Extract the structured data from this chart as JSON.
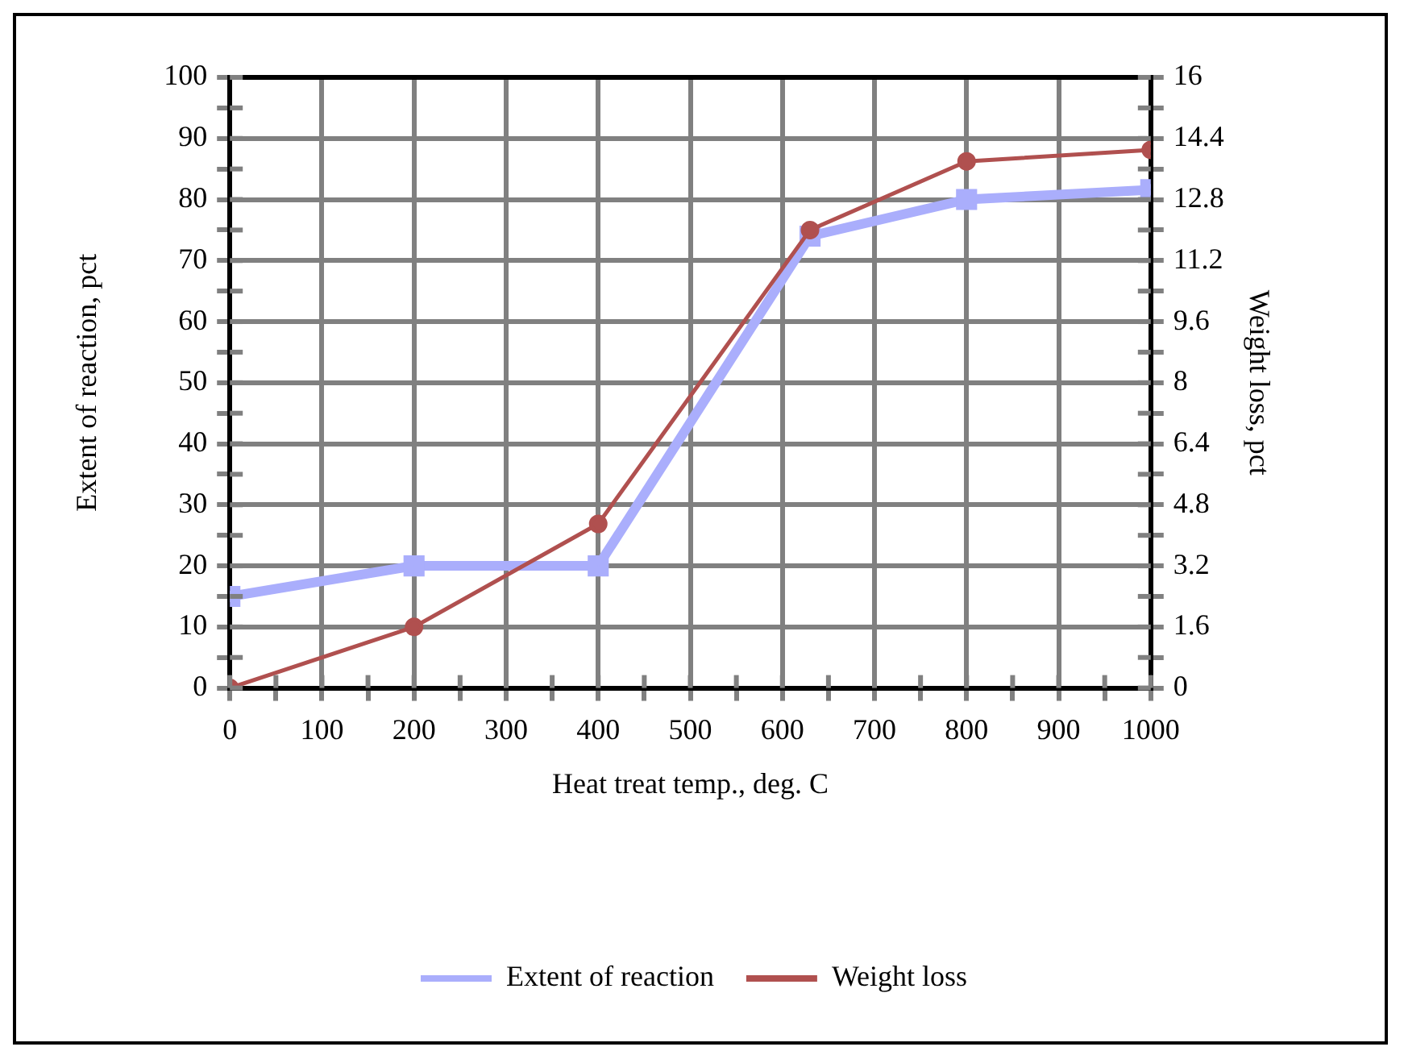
{
  "chart_data": {
    "type": "line",
    "xlabel": "Heat treat temp., deg. C",
    "ylabel": "Extent of reaction, pct",
    "y2label": "Weight loss, pct",
    "xlim": [
      0,
      1000
    ],
    "xticks": [
      0,
      {
        "value": 50,
        "label": null
      },
      100,
      {
        "value": 150,
        "label": null
      },
      200,
      {
        "value": 250,
        "label": null
      },
      300,
      {
        "value": 350,
        "label": null
      },
      400,
      {
        "value": 450,
        "label": null
      },
      500,
      {
        "value": 550,
        "label": null
      },
      600,
      {
        "value": 650,
        "label": null
      },
      700,
      {
        "value": 750,
        "label": null
      },
      800,
      {
        "value": 850,
        "label": null
      },
      900,
      {
        "value": 950,
        "label": null
      },
      1000
    ],
    "ylim": [
      0,
      100
    ],
    "yticks": [
      0,
      {
        "value": 5,
        "label": null
      },
      10,
      {
        "value": 15,
        "label": null
      },
      20,
      {
        "value": 25,
        "label": null
      },
      30,
      {
        "value": 35,
        "label": null
      },
      40,
      {
        "value": 45,
        "label": null
      },
      50,
      {
        "value": 55,
        "label": null
      },
      60,
      {
        "value": 65,
        "label": null
      },
      70,
      {
        "value": 75,
        "label": null
      },
      80,
      {
        "value": 85,
        "label": null
      },
      90,
      {
        "value": 95,
        "label": null
      },
      100
    ],
    "y2lim": [
      0,
      16
    ],
    "y2ticks": [
      0,
      {
        "value": 0.8,
        "label": null
      },
      1.6,
      {
        "value": 2.4,
        "label": null
      },
      3.2,
      {
        "value": 4,
        "label": null
      },
      4.8,
      {
        "value": 5.6,
        "label": null
      },
      6.4,
      {
        "value": 7.2,
        "label": null
      },
      8,
      {
        "value": 8.8,
        "label": null
      },
      9.6,
      {
        "value": 10.4,
        "label": null
      },
      11.2,
      {
        "value": 12,
        "label": null
      },
      12.8,
      {
        "value": 13.6,
        "label": null
      },
      14.4,
      {
        "value": 15.2,
        "label": null
      },
      16
    ],
    "grid": true,
    "legend": "bottom",
    "line_style": "solid",
    "series": [
      {
        "name": "Extent of reaction",
        "color": "#aaaefc",
        "marker": "square",
        "x": [
          0,
          200,
          400,
          630,
          800,
          1000
        ],
        "values": [
          15,
          20,
          20,
          74,
          80,
          81.6
        ]
      },
      {
        "name": "Weight loss",
        "color": "#b0504f",
        "marker": "circle",
        "axis": "y2",
        "x": [
          0,
          200,
          400,
          630,
          800,
          1000
        ],
        "values": [
          0,
          1.6,
          4.3,
          12,
          13.8,
          14.1
        ]
      }
    ]
  }
}
